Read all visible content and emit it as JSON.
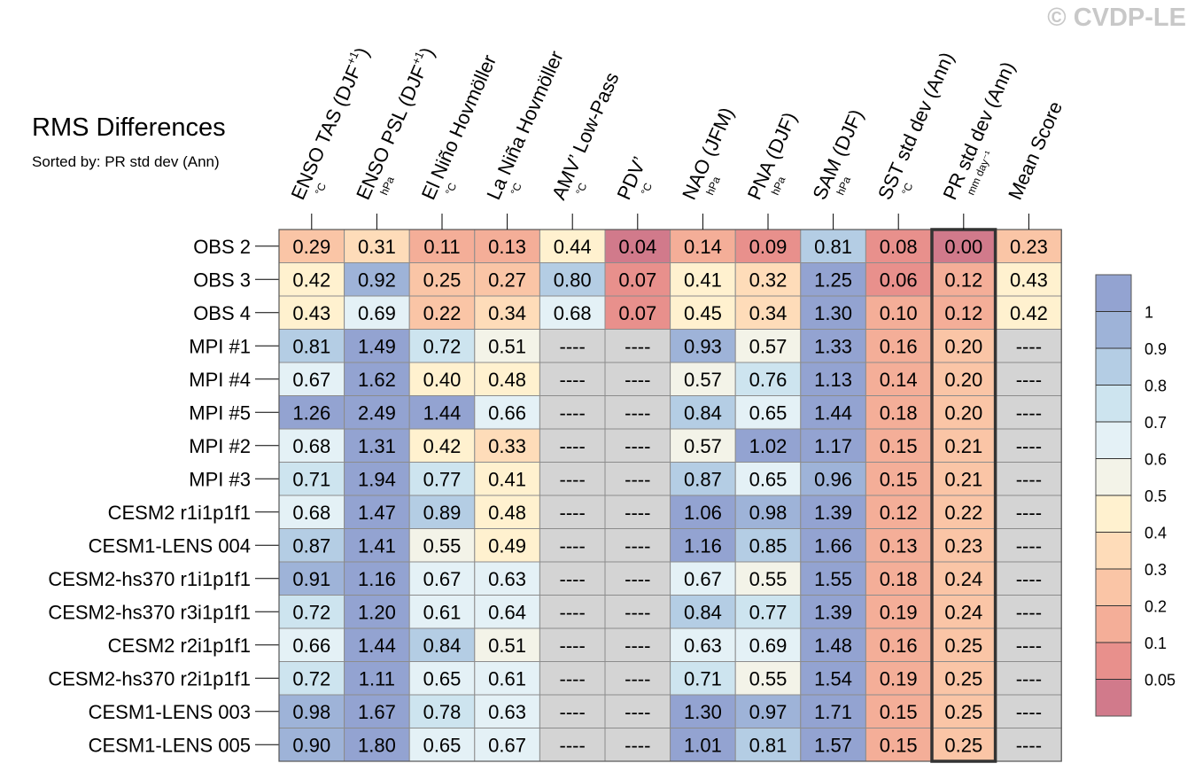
{
  "watermark": "© CVDP-LE",
  "chart_data": {
    "type": "heatmap",
    "title": "RMS Differences",
    "subtitle": "Sorted by: PR std dev (Ann)",
    "columns": [
      {
        "label": "ENSO TAS (DJF",
        "sup": "+1",
        "close": ")",
        "unit": "°C"
      },
      {
        "label": "ENSO PSL (DJF",
        "sup": "+1",
        "close": ")",
        "unit": "hPa"
      },
      {
        "label": "El Niño Hovmöller",
        "sup": "",
        "close": "",
        "unit": "°C"
      },
      {
        "label": "La Niña Hovmöller",
        "sup": "",
        "close": "",
        "unit": "°C"
      },
      {
        "label": "AMV’ Low-Pass",
        "sup": "",
        "close": "",
        "unit": "°C"
      },
      {
        "label": "PDV’",
        "sup": "",
        "close": "",
        "unit": "°C"
      },
      {
        "label": "NAO (JFM)",
        "sup": "",
        "close": "",
        "unit": "hPa"
      },
      {
        "label": "PNA (DJF)",
        "sup": "",
        "close": "",
        "unit": "hPa"
      },
      {
        "label": "SAM (DJF)",
        "sup": "",
        "close": "",
        "unit": "hPa"
      },
      {
        "label": "SST std dev (Ann)",
        "sup": "",
        "close": "",
        "unit": "°C"
      },
      {
        "label": "PR std dev (Ann)",
        "sup": "",
        "close": "",
        "unit": "mm day⁻¹"
      },
      {
        "label": "Mean Score",
        "sup": "",
        "close": "",
        "unit": ""
      }
    ],
    "highlighted_column": 10,
    "missing_label": "----",
    "rows": [
      {
        "name": "OBS 2",
        "values": [
          0.29,
          0.31,
          0.11,
          0.13,
          0.44,
          0.04,
          0.14,
          0.09,
          0.81,
          0.08,
          0.0,
          0.23
        ]
      },
      {
        "name": "OBS 3",
        "values": [
          0.42,
          0.92,
          0.25,
          0.27,
          0.8,
          0.07,
          0.41,
          0.32,
          1.25,
          0.06,
          0.12,
          0.43
        ]
      },
      {
        "name": "OBS 4",
        "values": [
          0.43,
          0.69,
          0.22,
          0.34,
          0.68,
          0.07,
          0.45,
          0.34,
          1.3,
          0.1,
          0.12,
          0.42
        ]
      },
      {
        "name": "MPI #1",
        "values": [
          0.81,
          1.49,
          0.72,
          0.51,
          null,
          null,
          0.93,
          0.57,
          1.33,
          0.16,
          0.2,
          null
        ]
      },
      {
        "name": "MPI #4",
        "values": [
          0.67,
          1.62,
          0.4,
          0.48,
          null,
          null,
          0.57,
          0.76,
          1.13,
          0.14,
          0.2,
          null
        ]
      },
      {
        "name": "MPI #5",
        "values": [
          1.26,
          2.49,
          1.44,
          0.66,
          null,
          null,
          0.84,
          0.65,
          1.44,
          0.18,
          0.2,
          null
        ]
      },
      {
        "name": "MPI #2",
        "values": [
          0.68,
          1.31,
          0.42,
          0.33,
          null,
          null,
          0.57,
          1.02,
          1.17,
          0.15,
          0.21,
          null
        ]
      },
      {
        "name": "MPI #3",
        "values": [
          0.71,
          1.94,
          0.77,
          0.41,
          null,
          null,
          0.87,
          0.65,
          0.96,
          0.15,
          0.21,
          null
        ]
      },
      {
        "name": "CESM2 r1i1p1f1",
        "values": [
          0.68,
          1.47,
          0.89,
          0.48,
          null,
          null,
          1.06,
          0.98,
          1.39,
          0.12,
          0.22,
          null
        ]
      },
      {
        "name": "CESM1-LENS 004",
        "values": [
          0.87,
          1.41,
          0.55,
          0.49,
          null,
          null,
          1.16,
          0.85,
          1.66,
          0.13,
          0.23,
          null
        ]
      },
      {
        "name": "CESM2-hs370 r1i1p1f1",
        "values": [
          0.91,
          1.16,
          0.67,
          0.63,
          null,
          null,
          0.67,
          0.55,
          1.55,
          0.18,
          0.24,
          null
        ]
      },
      {
        "name": "CESM2-hs370 r3i1p1f1",
        "values": [
          0.72,
          1.2,
          0.61,
          0.64,
          null,
          null,
          0.84,
          0.77,
          1.39,
          0.19,
          0.24,
          null
        ]
      },
      {
        "name": "CESM2 r2i1p1f1",
        "values": [
          0.66,
          1.44,
          0.84,
          0.51,
          null,
          null,
          0.63,
          0.69,
          1.48,
          0.16,
          0.25,
          null
        ]
      },
      {
        "name": "CESM2-hs370 r2i1p1f1",
        "values": [
          0.72,
          1.11,
          0.65,
          0.61,
          null,
          null,
          0.71,
          0.55,
          1.54,
          0.19,
          0.25,
          null
        ]
      },
      {
        "name": "CESM1-LENS 003",
        "values": [
          0.98,
          1.67,
          0.78,
          0.63,
          null,
          null,
          1.3,
          0.97,
          1.71,
          0.15,
          0.25,
          null
        ]
      },
      {
        "name": "CESM1-LENS 005",
        "values": [
          0.9,
          1.8,
          0.65,
          0.67,
          null,
          null,
          1.01,
          0.81,
          1.57,
          0.15,
          0.25,
          null
        ]
      }
    ],
    "colorbar": {
      "ticks": [
        "1",
        "0.9",
        "0.8",
        "0.7",
        "0.6",
        "0.5",
        "0.4",
        "0.3",
        "0.2",
        "0.1",
        "0.05"
      ],
      "bounds": [
        0.05,
        0.1,
        0.2,
        0.3,
        0.4,
        0.5,
        0.6,
        0.7,
        0.8,
        0.9,
        1
      ],
      "colors": [
        "#d17a8b",
        "#e8908c",
        "#f4ae98",
        "#fac5a6",
        "#fedcb9",
        "#fff1cf",
        "#f3f3e8",
        "#e4f1f6",
        "#cde4ef",
        "#b4cde4",
        "#9eb3d8",
        "#93a3d1"
      ],
      "missing_color": "#d4d4d4"
    }
  }
}
